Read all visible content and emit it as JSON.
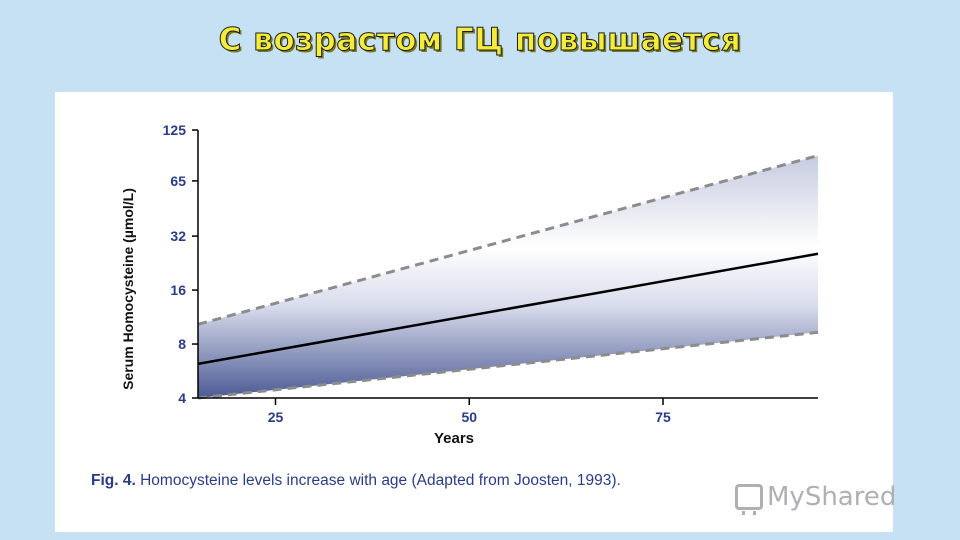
{
  "slide": {
    "title": "С возрастом ГЦ повышается"
  },
  "figure": {
    "caption_label": "Fig. 4.",
    "caption_text": " Homocysteine levels increase with age (Adapted from Joosten, 1993)."
  },
  "watermark": {
    "text": "MyShared",
    "icon": "presentation-board-icon"
  },
  "colors": {
    "background": "#c7e1f4",
    "title_fill": "#f4ec3a",
    "band_dark": "#4b5a94",
    "band_light": "#ffffff",
    "dashed_line": "#8c8c8c",
    "caption": "#2a3b8c"
  },
  "chart_data": {
    "type": "area",
    "title": "",
    "xlabel": "Years",
    "ylabel": "Serum Homocysteine (µmol/L)",
    "xlim": [
      15,
      95
    ],
    "x_ticks": [
      25,
      50,
      75
    ],
    "y_ticks": [
      4,
      8,
      16,
      32,
      65,
      125
    ],
    "y_scale": "log2",
    "grid": false,
    "series": [
      {
        "style": "dashed",
        "x": [
          15,
          95
        ],
        "y": [
          10.3,
          90
        ]
      },
      {
        "style": "solid",
        "x": [
          15,
          95
        ],
        "y": [
          6.2,
          25.5
        ]
      },
      {
        "style": "dashed",
        "x": [
          15,
          95
        ],
        "y": [
          4.0,
          9.3
        ]
      }
    ]
  }
}
